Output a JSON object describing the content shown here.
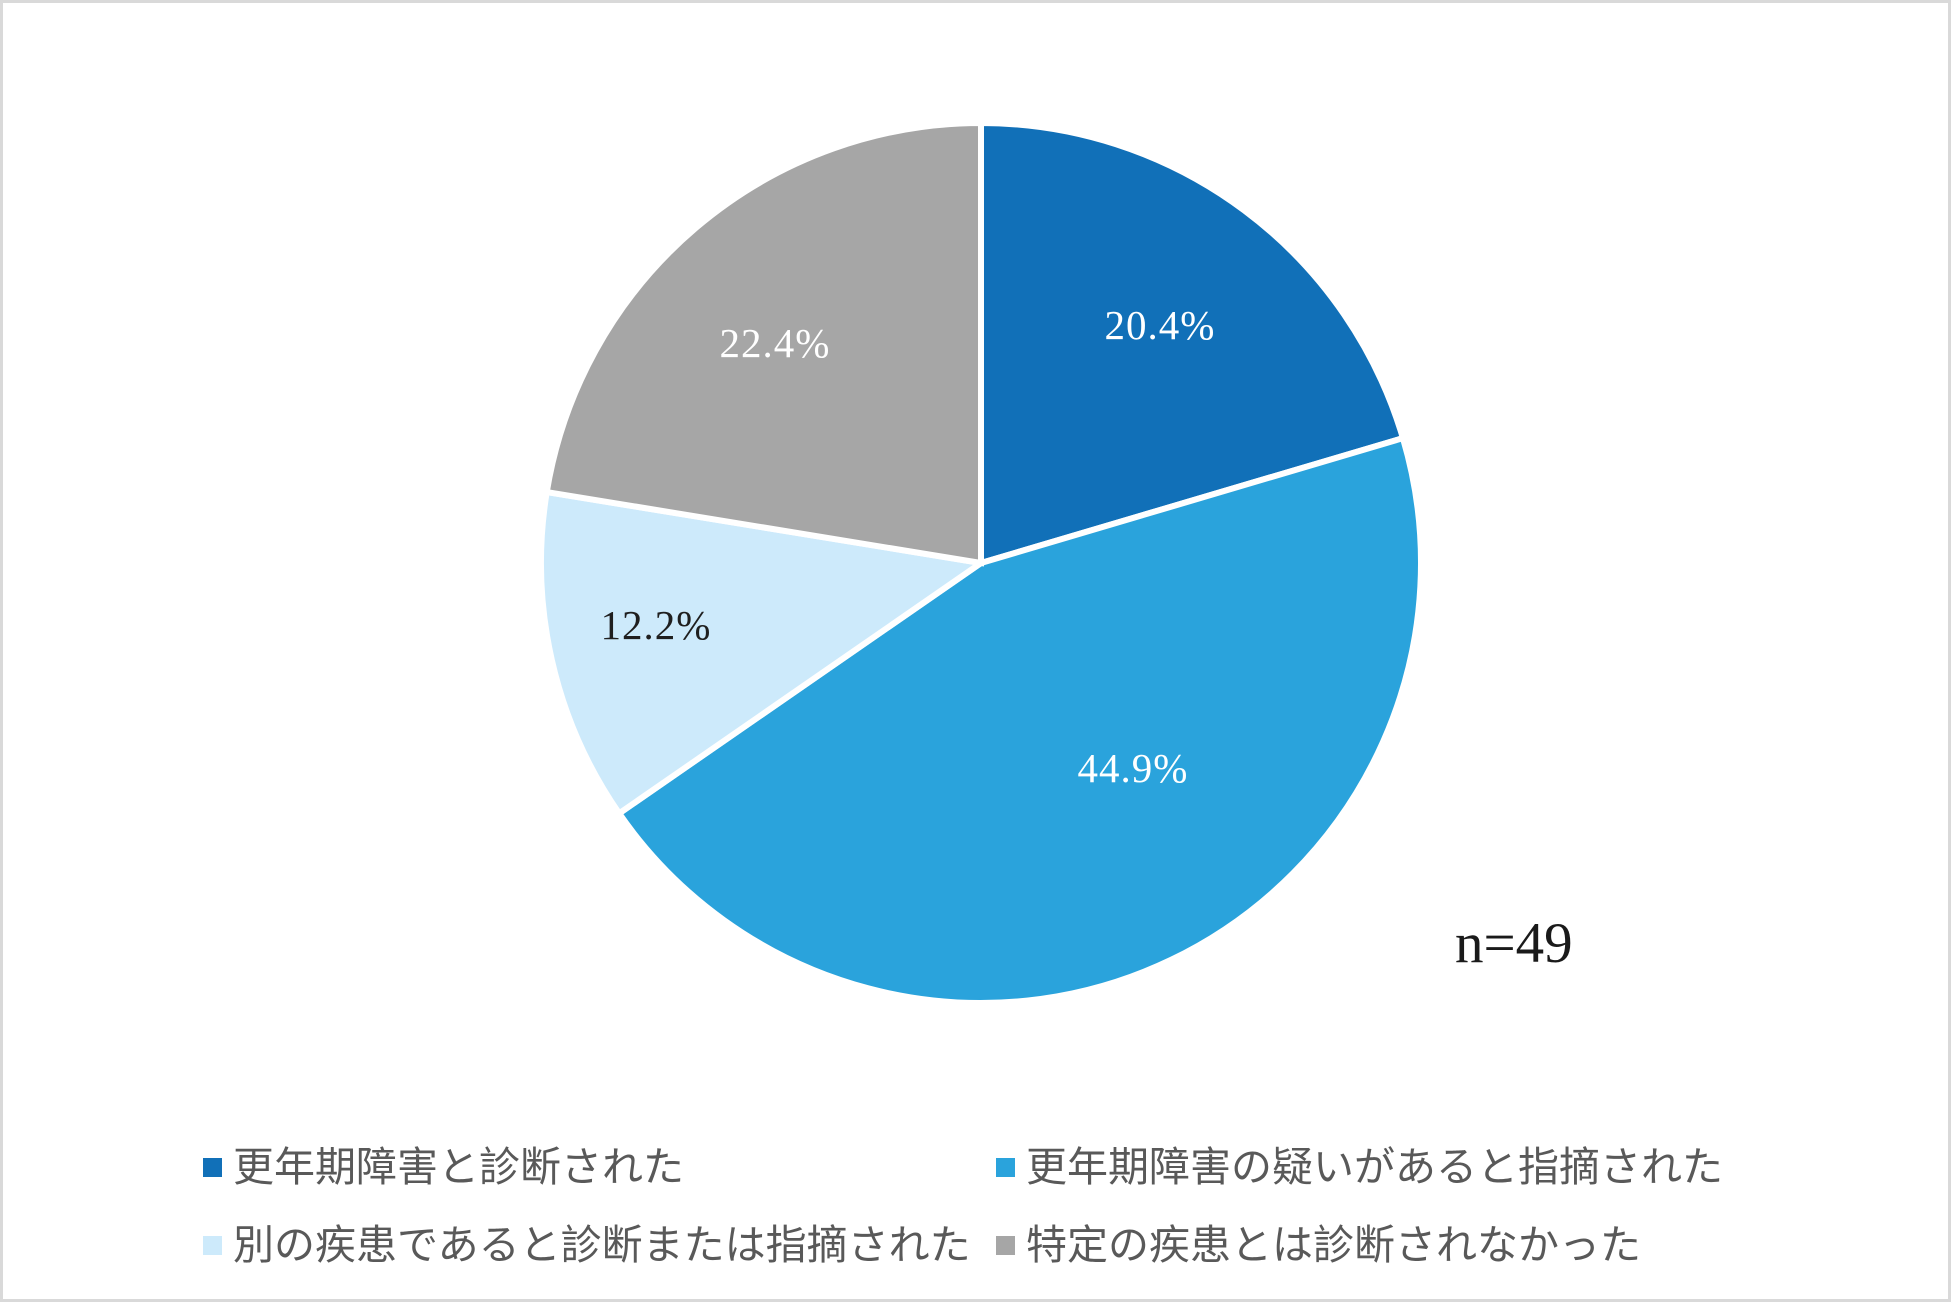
{
  "canvas": {
    "background": "#ffffff",
    "frame_color": "#d9d9d9"
  },
  "chart_data": {
    "type": "pie",
    "title": "",
    "categories": [
      "更年期障害と診断された",
      "更年期障害の疑いがあると指摘された",
      "別の疾患であると診断または指摘された",
      "特定の疾患とは診断されなかった"
    ],
    "values": [
      20.4,
      44.9,
      12.2,
      22.4
    ],
    "labels": [
      "20.4%",
      "44.9%",
      "12.2%",
      "22.4%"
    ],
    "colors": [
      "#1170b8",
      "#2aa3dc",
      "#cdeafb",
      "#a6a6a6"
    ],
    "label_colors": [
      "#ffffff",
      "#ffffff",
      "#1f1f1f",
      "#ffffff"
    ],
    "separator_color": "#ffffff",
    "start_angle": 0,
    "direction": "clockwise",
    "legend_position": "bottom",
    "legend_text_color": "#595959",
    "annotation": "n=49"
  }
}
